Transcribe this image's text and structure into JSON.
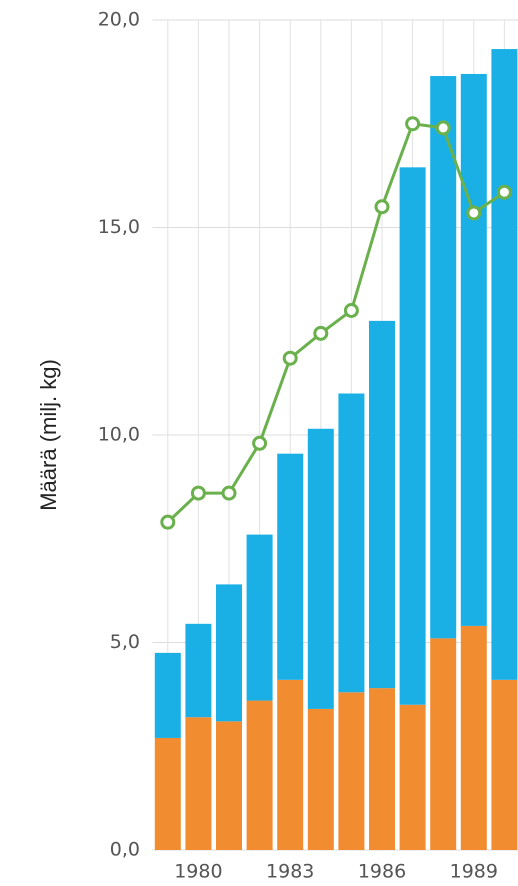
{
  "chart_data": {
    "type": "bar_line",
    "y_label": "Määrä (milj. kg)",
    "categories": [
      null,
      "1980",
      null,
      null,
      "1983",
      null,
      null,
      "1986",
      null,
      null,
      "1989",
      null
    ],
    "series": [
      {
        "kind": "bar",
        "color": "#f28c30",
        "values": [
          2.7,
          3.2,
          3.1,
          3.6,
          4.1,
          3.4,
          3.8,
          3.9,
          3.5,
          5.1,
          5.4,
          4.1
        ]
      },
      {
        "kind": "bar",
        "color": "#1ab0e6",
        "values": [
          2.05,
          2.25,
          3.3,
          4.0,
          5.45,
          6.75,
          7.2,
          8.85,
          12.95,
          13.55,
          13.3,
          15.2
        ]
      },
      {
        "kind": "line",
        "color": "#6ab04c",
        "values": [
          7.9,
          8.6,
          8.6,
          9.8,
          11.85,
          12.45,
          13.0,
          15.5,
          17.5,
          17.4,
          15.35,
          15.85
        ]
      }
    ],
    "ylim": [
      0,
      20
    ],
    "yticks": [
      {
        "value": 0,
        "label": "0,0"
      },
      {
        "value": 5,
        "label": "5,0"
      },
      {
        "value": 10,
        "label": "10,0"
      },
      {
        "value": 15,
        "label": "15,0"
      },
      {
        "value": 20,
        "label": "20,0"
      }
    ],
    "grid": true
  }
}
